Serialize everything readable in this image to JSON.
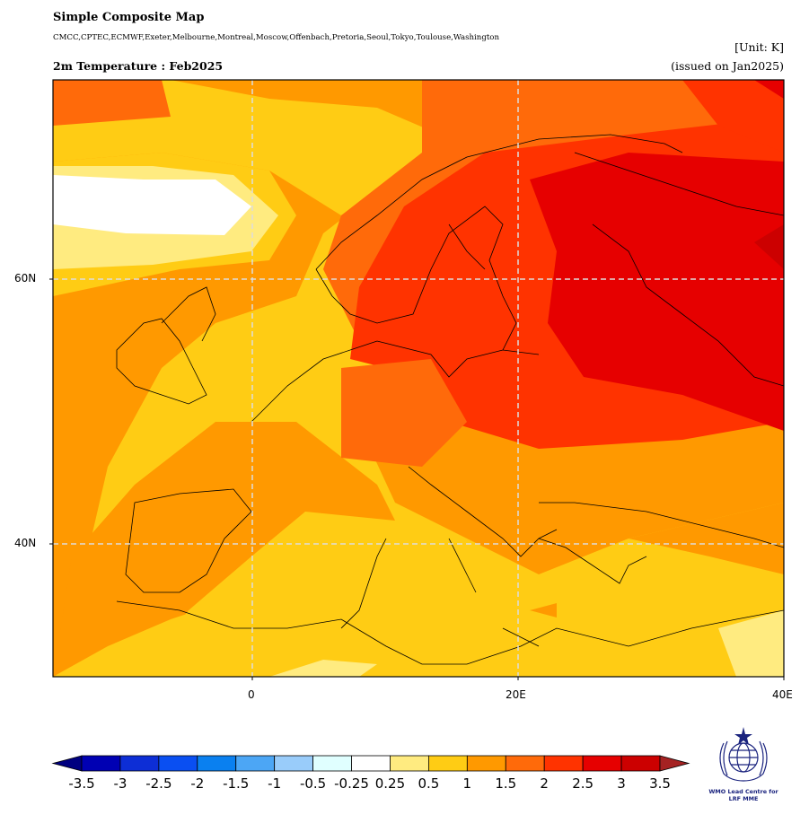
{
  "title": "Simple Composite Map",
  "models": "CMCC,CPTEC,ECMWF,Exeter,Melbourne,Montreal,Moscow,Offenbach,Pretoria,Seoul,Tokyo,Toulouse,Washington",
  "unit": "[Unit: K]",
  "subtitle": "2m Temperature : Feb2025",
  "issued": "(issued on Jan2025)",
  "map_extent": {
    "lon": [
      -15,
      40
    ],
    "lat": [
      30,
      75
    ]
  },
  "lat_ticks": [
    {
      "value": 60,
      "label": "60N"
    },
    {
      "value": 40,
      "label": "40N"
    }
  ],
  "lon_ticks": [
    {
      "value": 0,
      "label": "0"
    },
    {
      "value": 20,
      "label": "20E"
    },
    {
      "value": 40,
      "label": "40E"
    }
  ],
  "colorbar": {
    "labels": [
      "-3.5",
      "-3",
      "-2.5",
      "-2",
      "-1.5",
      "-1",
      "-0.5",
      "-0.25",
      "0.25",
      "0.5",
      "1",
      "1.5",
      "2",
      "2.5",
      "3",
      "3.5"
    ],
    "colors": [
      "#0000b3",
      "#0d2ed6",
      "#0a4ff2",
      "#0a80f0",
      "#4ca6f5",
      "#99ccfa",
      "#e0ffff",
      "#ffffff",
      "#ffeb80",
      "#ffcc14",
      "#ff9900",
      "#ff6a0a",
      "#ff3300",
      "#e60000",
      "#cc0000"
    ],
    "under_color": "#000080",
    "over_color": "#a52222"
  },
  "logo_text": [
    "WMO Lead Centre for",
    "LRF MME"
  ]
}
